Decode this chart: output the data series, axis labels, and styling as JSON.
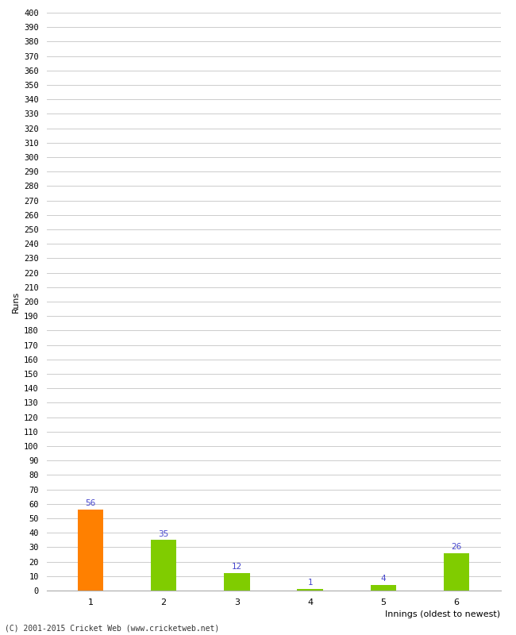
{
  "categories": [
    "1",
    "2",
    "3",
    "4",
    "5",
    "6"
  ],
  "values": [
    56,
    35,
    12,
    1,
    4,
    26
  ],
  "bar_colors": [
    "#ff8000",
    "#80cc00",
    "#80cc00",
    "#80cc00",
    "#80cc00",
    "#80cc00"
  ],
  "ylabel": "Runs",
  "xlabel": "Innings (oldest to newest)",
  "ylim": [
    0,
    400
  ],
  "ytick_step": 10,
  "annotation_color": "#4444cc",
  "annotation_fontsize": 7.5,
  "footer": "(C) 2001-2015 Cricket Web (www.cricketweb.net)",
  "background_color": "#ffffff",
  "grid_color": "#cccccc",
  "bar_width": 0.35
}
